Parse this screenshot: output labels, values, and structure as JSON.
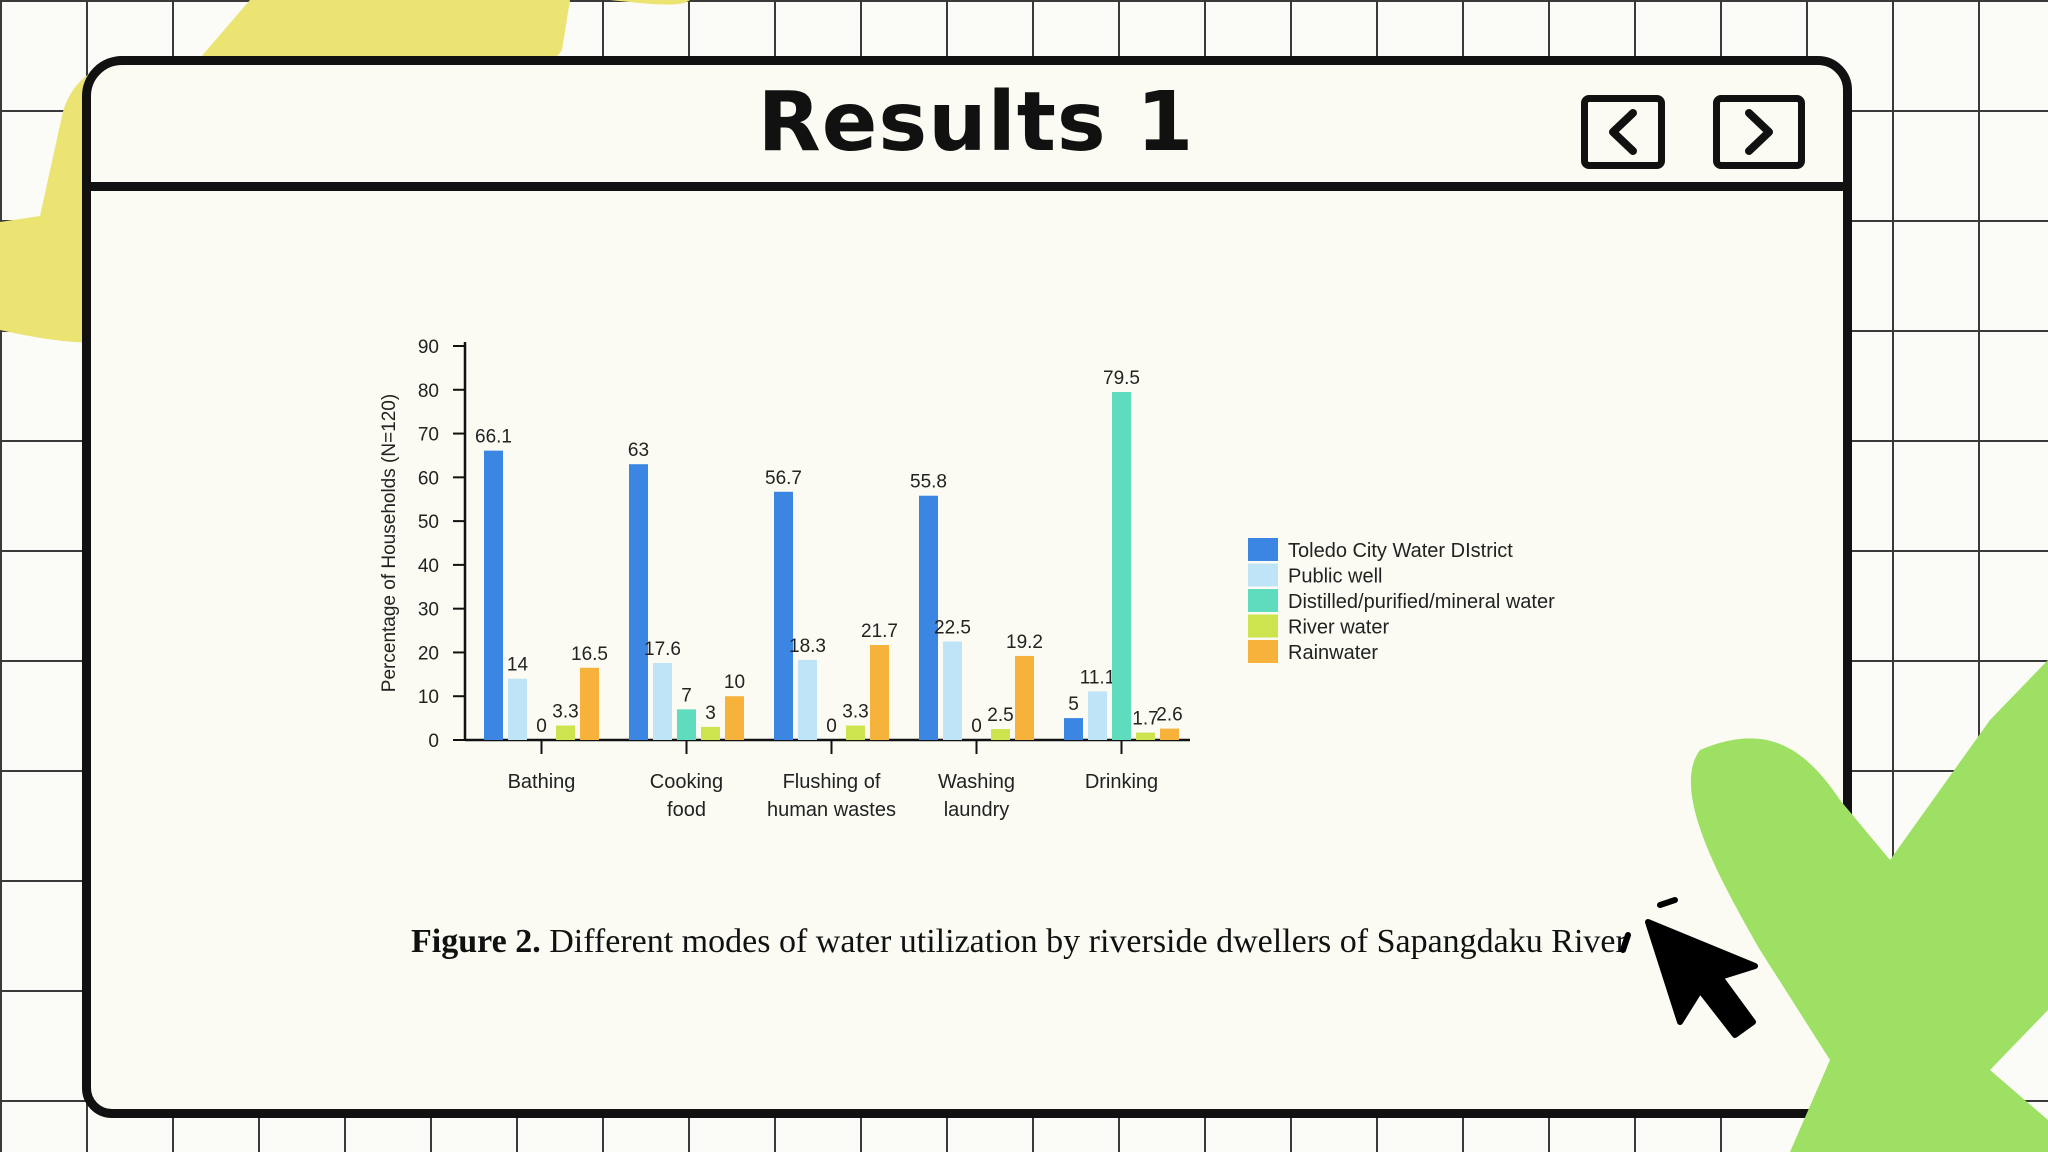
{
  "window": {
    "title": "Results 1",
    "prev_icon": "chevron-left-icon",
    "next_icon": "chevron-right-icon"
  },
  "caption": {
    "label": "Figure 2.",
    "text": "Different modes of water utilization by riverside dwellers of Sapangdaku River"
  },
  "colors": {
    "yellow_deco": "#ece472",
    "green_deco": "#9de064",
    "window_bg": "#fbfbf3",
    "outline": "#111111"
  },
  "chart_data": {
    "type": "bar",
    "title": "",
    "xlabel": "",
    "ylabel": "Percentage of Households (N=120)",
    "ylim": [
      0,
      90
    ],
    "yticks": [
      0,
      10,
      20,
      30,
      40,
      50,
      60,
      70,
      80,
      90
    ],
    "categories": [
      [
        "Bathing"
      ],
      [
        "Cooking",
        "food"
      ],
      [
        "Flushing of",
        "human wastes"
      ],
      [
        "Washing",
        "laundry"
      ],
      [
        "Drinking"
      ]
    ],
    "series": [
      {
        "name": "Toledo City Water DIstrict",
        "color": "#3b86e3",
        "values": [
          66.1,
          63,
          56.7,
          55.8,
          5
        ],
        "labels": [
          "66.1",
          "63",
          "56.7",
          "55.8",
          "5"
        ]
      },
      {
        "name": "Public well",
        "color": "#bfe4f7",
        "values": [
          14,
          17.6,
          18.3,
          22.5,
          11.1
        ],
        "labels": [
          "14",
          "17.6",
          "18.3",
          "22.5",
          "11.1"
        ]
      },
      {
        "name": "Distilled/purified/mineral water",
        "color": "#5fdbbd",
        "values": [
          0,
          7,
          0,
          0,
          79.5
        ],
        "labels": [
          "0",
          "7",
          "0",
          "0",
          "79.5"
        ]
      },
      {
        "name": "River water",
        "color": "#cde44e",
        "values": [
          3.3,
          3,
          3.3,
          2.5,
          1.7
        ],
        "labels": [
          "3.3",
          "3",
          "3.3",
          "2.5",
          "1.7"
        ]
      },
      {
        "name": "Rainwater",
        "color": "#f6b23a",
        "values": [
          16.5,
          10,
          21.7,
          19.2,
          2.6
        ],
        "labels": [
          "16.5",
          "10",
          "21.7",
          "19.2",
          "2.6"
        ]
      }
    ],
    "legend_position": "right",
    "grid": false
  }
}
